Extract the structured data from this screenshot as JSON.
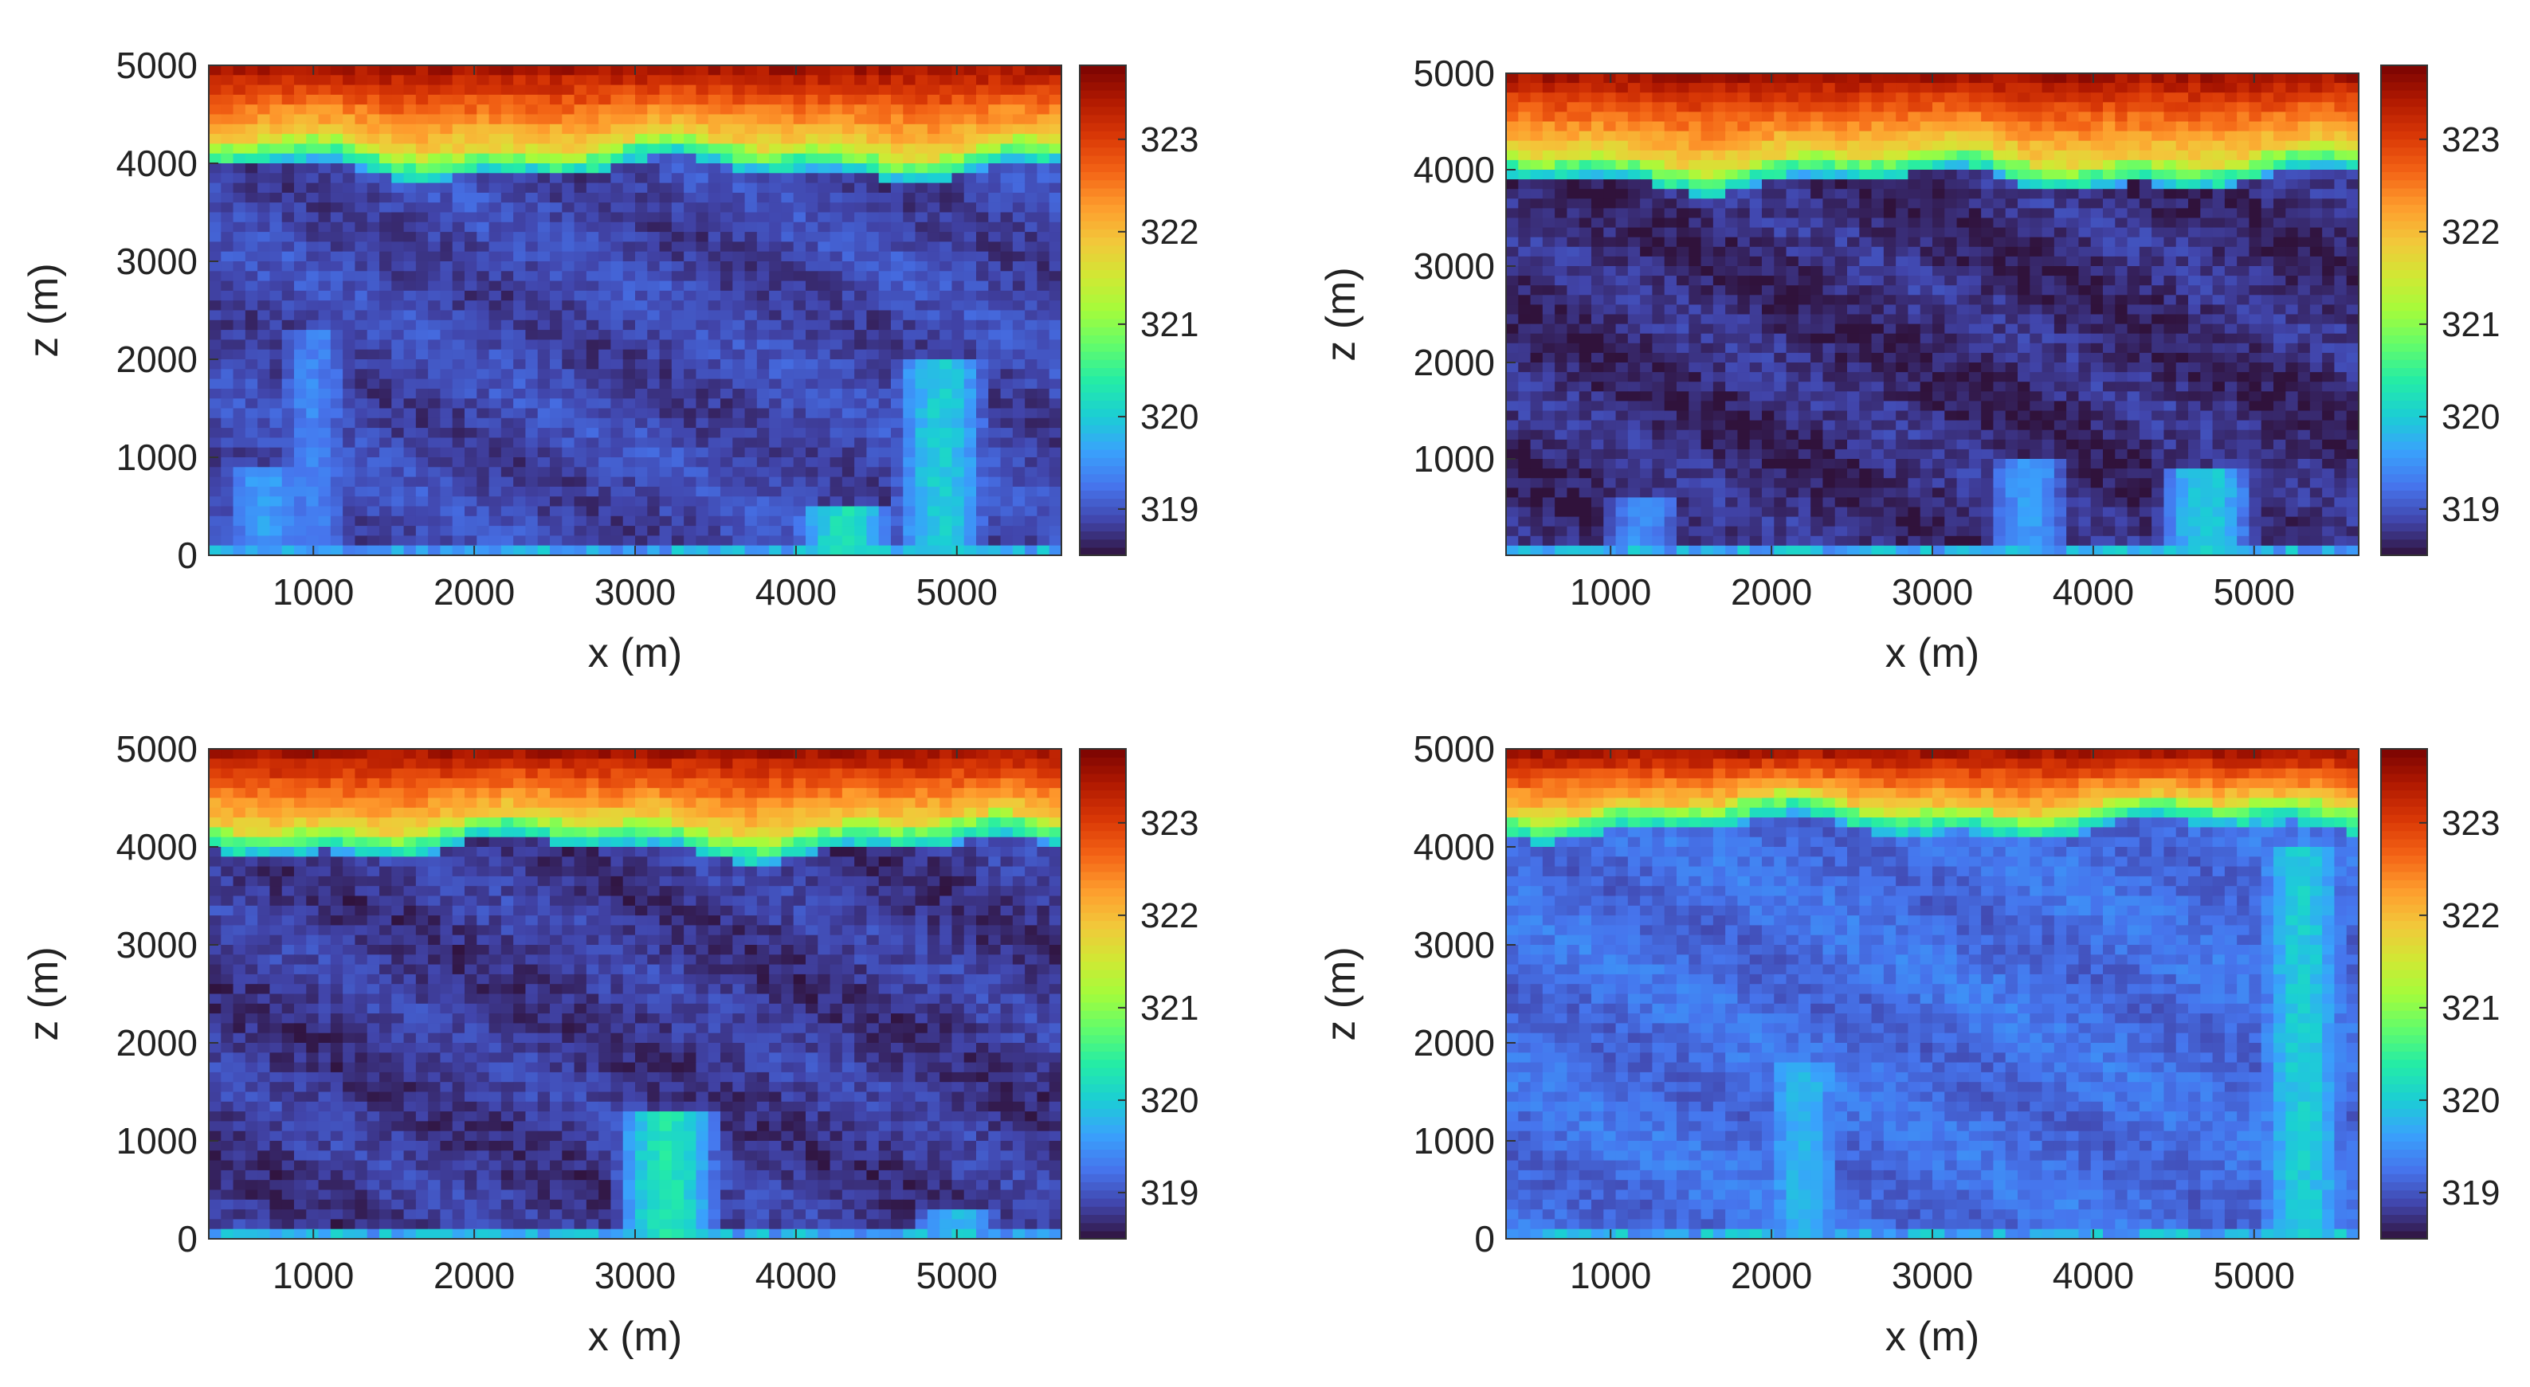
{
  "colormap": [
    "#30123b",
    "#4145ab",
    "#4675ed",
    "#39a2fc",
    "#1bcfd4",
    "#24eca6",
    "#61fc6c",
    "#a4fc3b",
    "#d1e834",
    "#f3c63a",
    "#fe9b2d",
    "#f36315",
    "#d93806",
    "#b11901",
    "#7a0402"
  ],
  "chart_data": [
    {
      "type": "heatmap",
      "panel": "top-left",
      "xlabel": "x (m)",
      "ylabel": "z (m)",
      "xlim": [
        350,
        5650
      ],
      "ylim": [
        0,
        5000
      ],
      "xticks": [
        "1000",
        "2000",
        "3000",
        "4000",
        "5000"
      ],
      "yticks": [
        "0",
        "1000",
        "2000",
        "3000",
        "4000",
        "5000"
      ],
      "colorbar": {
        "range": [
          318.5,
          323.8
        ],
        "ticks": [
          "319",
          "320",
          "321",
          "322",
          "323"
        ]
      },
      "inversion_height_m": 4050,
      "mixed_layer_value": 318.9,
      "upper_layer_value": 323.0,
      "plumes": [
        {
          "x": 4900,
          "top": 2000,
          "value": 320.0
        },
        {
          "x": 4300,
          "top": 500,
          "value": 320.2
        },
        {
          "x": 700,
          "top": 900,
          "value": 319.6
        },
        {
          "x": 1000,
          "top": 2300,
          "value": 319.4
        }
      ]
    },
    {
      "type": "heatmap",
      "panel": "top-right",
      "xlabel": "x (m)",
      "ylabel": "z (m)",
      "xlim": [
        350,
        5650
      ],
      "ylim": [
        0,
        5000
      ],
      "xticks": [
        "1000",
        "2000",
        "3000",
        "4000",
        "5000"
      ],
      "yticks": [
        "1000",
        "2000",
        "3000",
        "4000",
        "5000"
      ],
      "colorbar": {
        "range": [
          318.5,
          323.8
        ],
        "ticks": [
          "319",
          "320",
          "321",
          "322",
          "323"
        ]
      },
      "inversion_height_m": 4000,
      "mixed_layer_value": 318.7,
      "upper_layer_value": 323.0,
      "plumes": [
        {
          "x": 4700,
          "top": 900,
          "value": 320.0
        },
        {
          "x": 3600,
          "top": 1000,
          "value": 319.6
        },
        {
          "x": 1200,
          "top": 600,
          "value": 319.5
        }
      ]
    },
    {
      "type": "heatmap",
      "panel": "bottom-left",
      "xlabel": "x (m)",
      "ylabel": "z (m)",
      "xlim": [
        350,
        5650
      ],
      "ylim": [
        0,
        5000
      ],
      "xticks": [
        "1000",
        "2000",
        "3000",
        "4000",
        "5000"
      ],
      "yticks": [
        "0",
        "1000",
        "2000",
        "3000",
        "4000",
        "5000"
      ],
      "colorbar": {
        "range": [
          318.5,
          323.8
        ],
        "ticks": [
          "319",
          "320",
          "321",
          "322",
          "323"
        ]
      },
      "inversion_height_m": 4100,
      "mixed_layer_value": 318.8,
      "upper_layer_value": 323.0,
      "plumes": [
        {
          "x": 3200,
          "top": 1300,
          "value": 320.3
        },
        {
          "x": 5000,
          "top": 300,
          "value": 319.8
        }
      ]
    },
    {
      "type": "heatmap",
      "panel": "bottom-right",
      "xlabel": "x (m)",
      "ylabel": "z (m)",
      "xlim": [
        350,
        5650
      ],
      "ylim": [
        0,
        5000
      ],
      "xticks": [
        "1000",
        "2000",
        "3000",
        "4000",
        "5000"
      ],
      "yticks": [
        "0",
        "1000",
        "2000",
        "3000",
        "4000",
        "5000"
      ],
      "colorbar": {
        "range": [
          318.5,
          323.8
        ],
        "ticks": [
          "319",
          "320",
          "321",
          "322",
          "323"
        ]
      },
      "inversion_height_m": 4300,
      "mixed_layer_value": 319.2,
      "upper_layer_value": 323.0,
      "plumes": [
        {
          "x": 2200,
          "top": 1800,
          "value": 319.8
        },
        {
          "x": 5300,
          "top": 4000,
          "value": 320.0
        }
      ]
    }
  ]
}
